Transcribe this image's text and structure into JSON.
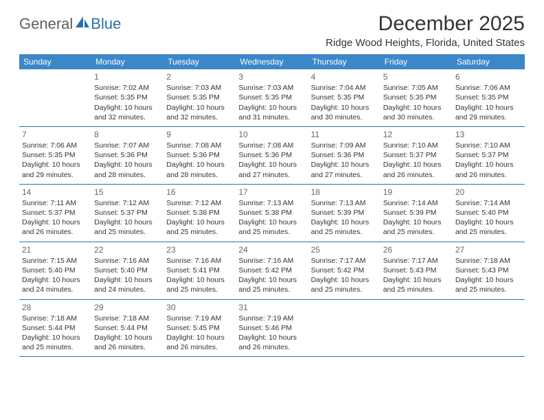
{
  "logo": {
    "general": "General",
    "blue": "Blue"
  },
  "title": "December 2025",
  "location": "Ridge Wood Heights, Florida, United States",
  "colors": {
    "header_bg": "#3b87c8",
    "header_text": "#ffffff",
    "divider": "#2a6fb0",
    "text": "#333333",
    "daynum": "#666666",
    "logo_gray": "#5f5f5f",
    "logo_blue": "#2a6fb0"
  },
  "day_names": [
    "Sunday",
    "Monday",
    "Tuesday",
    "Wednesday",
    "Thursday",
    "Friday",
    "Saturday"
  ],
  "weeks": [
    [
      {
        "blank": true
      },
      {
        "n": "1",
        "sr": "Sunrise: 7:02 AM",
        "ss": "Sunset: 5:35 PM",
        "d1": "Daylight: 10 hours",
        "d2": "and 32 minutes."
      },
      {
        "n": "2",
        "sr": "Sunrise: 7:03 AM",
        "ss": "Sunset: 5:35 PM",
        "d1": "Daylight: 10 hours",
        "d2": "and 32 minutes."
      },
      {
        "n": "3",
        "sr": "Sunrise: 7:03 AM",
        "ss": "Sunset: 5:35 PM",
        "d1": "Daylight: 10 hours",
        "d2": "and 31 minutes."
      },
      {
        "n": "4",
        "sr": "Sunrise: 7:04 AM",
        "ss": "Sunset: 5:35 PM",
        "d1": "Daylight: 10 hours",
        "d2": "and 30 minutes."
      },
      {
        "n": "5",
        "sr": "Sunrise: 7:05 AM",
        "ss": "Sunset: 5:35 PM",
        "d1": "Daylight: 10 hours",
        "d2": "and 30 minutes."
      },
      {
        "n": "6",
        "sr": "Sunrise: 7:06 AM",
        "ss": "Sunset: 5:35 PM",
        "d1": "Daylight: 10 hours",
        "d2": "and 29 minutes."
      }
    ],
    [
      {
        "n": "7",
        "sr": "Sunrise: 7:06 AM",
        "ss": "Sunset: 5:35 PM",
        "d1": "Daylight: 10 hours",
        "d2": "and 29 minutes."
      },
      {
        "n": "8",
        "sr": "Sunrise: 7:07 AM",
        "ss": "Sunset: 5:36 PM",
        "d1": "Daylight: 10 hours",
        "d2": "and 28 minutes."
      },
      {
        "n": "9",
        "sr": "Sunrise: 7:08 AM",
        "ss": "Sunset: 5:36 PM",
        "d1": "Daylight: 10 hours",
        "d2": "and 28 minutes."
      },
      {
        "n": "10",
        "sr": "Sunrise: 7:08 AM",
        "ss": "Sunset: 5:36 PM",
        "d1": "Daylight: 10 hours",
        "d2": "and 27 minutes."
      },
      {
        "n": "11",
        "sr": "Sunrise: 7:09 AM",
        "ss": "Sunset: 5:36 PM",
        "d1": "Daylight: 10 hours",
        "d2": "and 27 minutes."
      },
      {
        "n": "12",
        "sr": "Sunrise: 7:10 AM",
        "ss": "Sunset: 5:37 PM",
        "d1": "Daylight: 10 hours",
        "d2": "and 26 minutes."
      },
      {
        "n": "13",
        "sr": "Sunrise: 7:10 AM",
        "ss": "Sunset: 5:37 PM",
        "d1": "Daylight: 10 hours",
        "d2": "and 26 minutes."
      }
    ],
    [
      {
        "n": "14",
        "sr": "Sunrise: 7:11 AM",
        "ss": "Sunset: 5:37 PM",
        "d1": "Daylight: 10 hours",
        "d2": "and 26 minutes."
      },
      {
        "n": "15",
        "sr": "Sunrise: 7:12 AM",
        "ss": "Sunset: 5:37 PM",
        "d1": "Daylight: 10 hours",
        "d2": "and 25 minutes."
      },
      {
        "n": "16",
        "sr": "Sunrise: 7:12 AM",
        "ss": "Sunset: 5:38 PM",
        "d1": "Daylight: 10 hours",
        "d2": "and 25 minutes."
      },
      {
        "n": "17",
        "sr": "Sunrise: 7:13 AM",
        "ss": "Sunset: 5:38 PM",
        "d1": "Daylight: 10 hours",
        "d2": "and 25 minutes."
      },
      {
        "n": "18",
        "sr": "Sunrise: 7:13 AM",
        "ss": "Sunset: 5:39 PM",
        "d1": "Daylight: 10 hours",
        "d2": "and 25 minutes."
      },
      {
        "n": "19",
        "sr": "Sunrise: 7:14 AM",
        "ss": "Sunset: 5:39 PM",
        "d1": "Daylight: 10 hours",
        "d2": "and 25 minutes."
      },
      {
        "n": "20",
        "sr": "Sunrise: 7:14 AM",
        "ss": "Sunset: 5:40 PM",
        "d1": "Daylight: 10 hours",
        "d2": "and 25 minutes."
      }
    ],
    [
      {
        "n": "21",
        "sr": "Sunrise: 7:15 AM",
        "ss": "Sunset: 5:40 PM",
        "d1": "Daylight: 10 hours",
        "d2": "and 24 minutes."
      },
      {
        "n": "22",
        "sr": "Sunrise: 7:16 AM",
        "ss": "Sunset: 5:40 PM",
        "d1": "Daylight: 10 hours",
        "d2": "and 24 minutes."
      },
      {
        "n": "23",
        "sr": "Sunrise: 7:16 AM",
        "ss": "Sunset: 5:41 PM",
        "d1": "Daylight: 10 hours",
        "d2": "and 25 minutes."
      },
      {
        "n": "24",
        "sr": "Sunrise: 7:16 AM",
        "ss": "Sunset: 5:42 PM",
        "d1": "Daylight: 10 hours",
        "d2": "and 25 minutes."
      },
      {
        "n": "25",
        "sr": "Sunrise: 7:17 AM",
        "ss": "Sunset: 5:42 PM",
        "d1": "Daylight: 10 hours",
        "d2": "and 25 minutes."
      },
      {
        "n": "26",
        "sr": "Sunrise: 7:17 AM",
        "ss": "Sunset: 5:43 PM",
        "d1": "Daylight: 10 hours",
        "d2": "and 25 minutes."
      },
      {
        "n": "27",
        "sr": "Sunrise: 7:18 AM",
        "ss": "Sunset: 5:43 PM",
        "d1": "Daylight: 10 hours",
        "d2": "and 25 minutes."
      }
    ],
    [
      {
        "n": "28",
        "sr": "Sunrise: 7:18 AM",
        "ss": "Sunset: 5:44 PM",
        "d1": "Daylight: 10 hours",
        "d2": "and 25 minutes."
      },
      {
        "n": "29",
        "sr": "Sunrise: 7:18 AM",
        "ss": "Sunset: 5:44 PM",
        "d1": "Daylight: 10 hours",
        "d2": "and 26 minutes."
      },
      {
        "n": "30",
        "sr": "Sunrise: 7:19 AM",
        "ss": "Sunset: 5:45 PM",
        "d1": "Daylight: 10 hours",
        "d2": "and 26 minutes."
      },
      {
        "n": "31",
        "sr": "Sunrise: 7:19 AM",
        "ss": "Sunset: 5:46 PM",
        "d1": "Daylight: 10 hours",
        "d2": "and 26 minutes."
      },
      {
        "blank": true
      },
      {
        "blank": true
      },
      {
        "blank": true
      }
    ]
  ]
}
